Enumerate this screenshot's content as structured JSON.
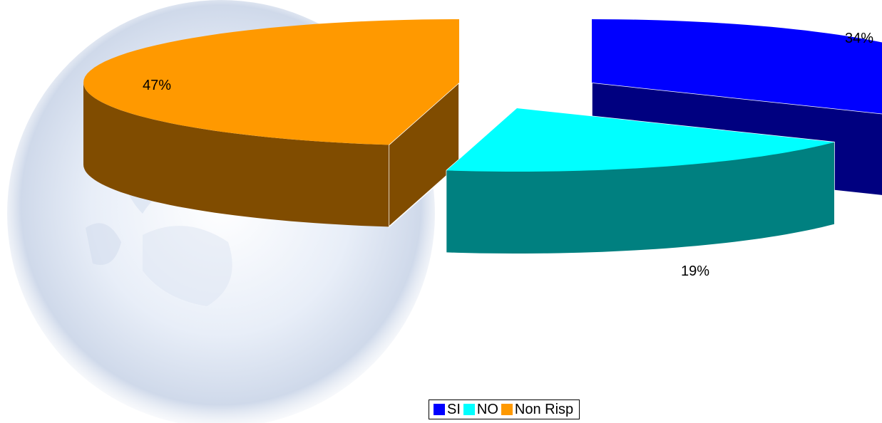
{
  "chart_data": {
    "type": "pie",
    "style": "3d-exploded",
    "categories": [
      "SI",
      "NO",
      "Non Risp"
    ],
    "values": [
      34,
      19,
      47
    ],
    "value_labels": [
      "34%",
      "19%",
      "47%"
    ],
    "colors": {
      "SI": {
        "top": "#0000ff",
        "side": "#000080"
      },
      "NO": {
        "top": "#00ffff",
        "side": "#008080"
      },
      "Non Risp": {
        "top": "#ff9900",
        "side": "#804c00"
      }
    },
    "legend": {
      "position": "bottom",
      "entries": [
        "SI",
        "NO",
        "Non Risp"
      ]
    },
    "background": "globe watermark"
  }
}
